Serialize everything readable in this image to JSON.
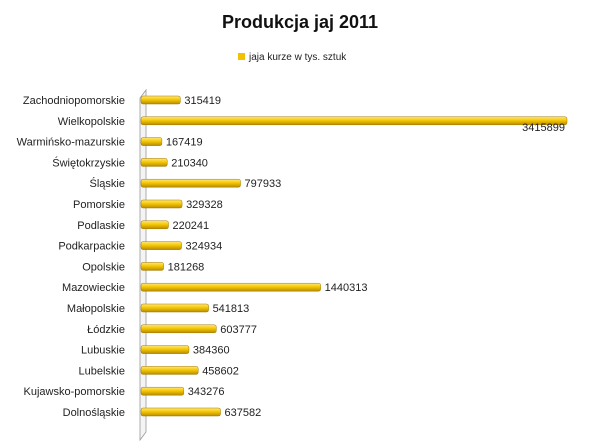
{
  "chart_data": {
    "type": "bar",
    "orientation": "horizontal",
    "title": "Produkcja jaj 2011",
    "legend": {
      "position": "top",
      "entries": [
        "jaja kurze w tys. sztuk"
      ]
    },
    "categories": [
      "Zachodniopomorskie",
      "Wielkopolskie",
      "Warmińsko-mazurskie",
      "Świętokrzyskie",
      "Śląskie",
      "Pomorskie",
      "Podlaskie",
      "Podkarpackie",
      "Opolskie",
      "Mazowieckie",
      "Małopolskie",
      "Łódzkie",
      "Lubuskie",
      "Lubelskie",
      "Kujawsko-pomorskie",
      "Dolnośląskie"
    ],
    "series": [
      {
        "name": "jaja kurze w tys. sztuk",
        "color": "#f2c200",
        "values": [
          315419,
          3415899,
          167419,
          210340,
          797933,
          329328,
          220241,
          324934,
          181268,
          1440313,
          541813,
          603777,
          384360,
          458602,
          343276,
          637582
        ]
      }
    ],
    "data_labels": true,
    "grid": false,
    "xlim": [
      0,
      3415899
    ]
  }
}
